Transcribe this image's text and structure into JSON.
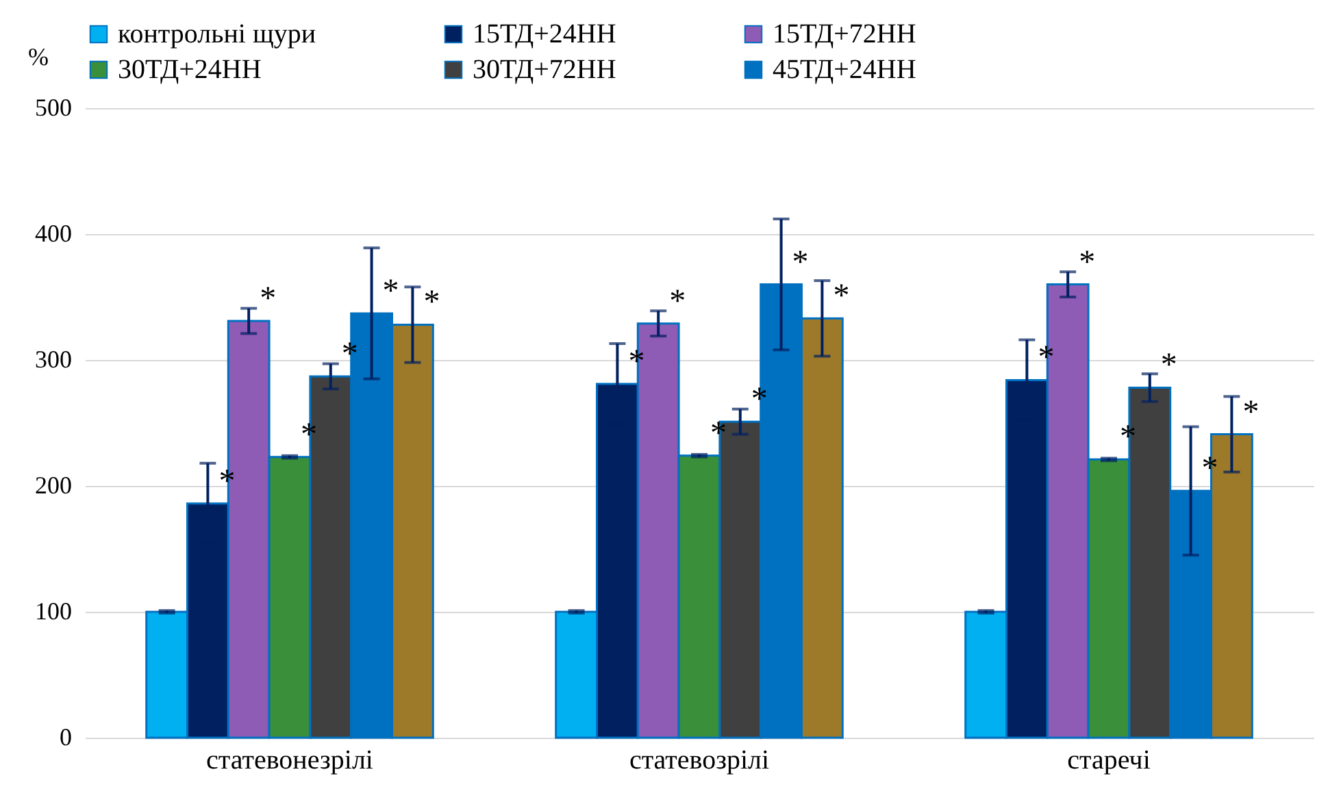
{
  "chart_data": {
    "type": "bar",
    "ylabel": "%",
    "categories": [
      "статевонезрілі",
      "статевозрілі",
      "старечі"
    ],
    "series": [
      {
        "name": "контрольні щури",
        "color": "#00b0f0",
        "values": [
          100,
          100,
          100
        ],
        "errors": [
          1,
          1,
          1
        ]
      },
      {
        "name": "15ТД+24НН",
        "color": "#002060",
        "values": [
          186,
          281,
          284
        ],
        "errors": [
          32,
          32,
          32
        ],
        "value_labels": [
          "*",
          "*",
          "*"
        ]
      },
      {
        "name": "15ТД+72НН",
        "color": "#8e5bb5",
        "values": [
          331,
          329,
          360
        ],
        "errors": [
          10,
          10,
          10
        ],
        "value_labels": [
          "*",
          "*",
          "*"
        ]
      },
      {
        "name": "30ТД+24НН",
        "color": "#3a8f3a",
        "values": [
          223,
          224,
          221
        ],
        "errors": [
          1,
          1,
          1
        ],
        "value_labels": [
          "*",
          "*",
          "*"
        ]
      },
      {
        "name": "30ТД+72НН",
        "color": "#404040",
        "values": [
          287,
          251,
          278
        ],
        "errors": [
          10,
          10,
          11
        ],
        "value_labels": [
          "*",
          "*",
          "*"
        ]
      },
      {
        "name": "45ТД+24НН",
        "color": "#0070c0",
        "values": [
          337,
          360,
          196
        ],
        "errors": [
          52,
          52,
          51
        ],
        "value_labels": [
          "*",
          "*",
          "*"
        ]
      },
      {
        "color": "#9c7a2a",
        "values": [
          328,
          333,
          241
        ],
        "errors": [
          30,
          30,
          30
        ],
        "value_labels": [
          "*",
          "*",
          "*"
        ]
      }
    ],
    "ylim": [
      0,
      500
    ],
    "yticks": [
      0,
      100,
      200,
      300,
      400,
      500
    ],
    "grid": "y",
    "legend": "top"
  }
}
